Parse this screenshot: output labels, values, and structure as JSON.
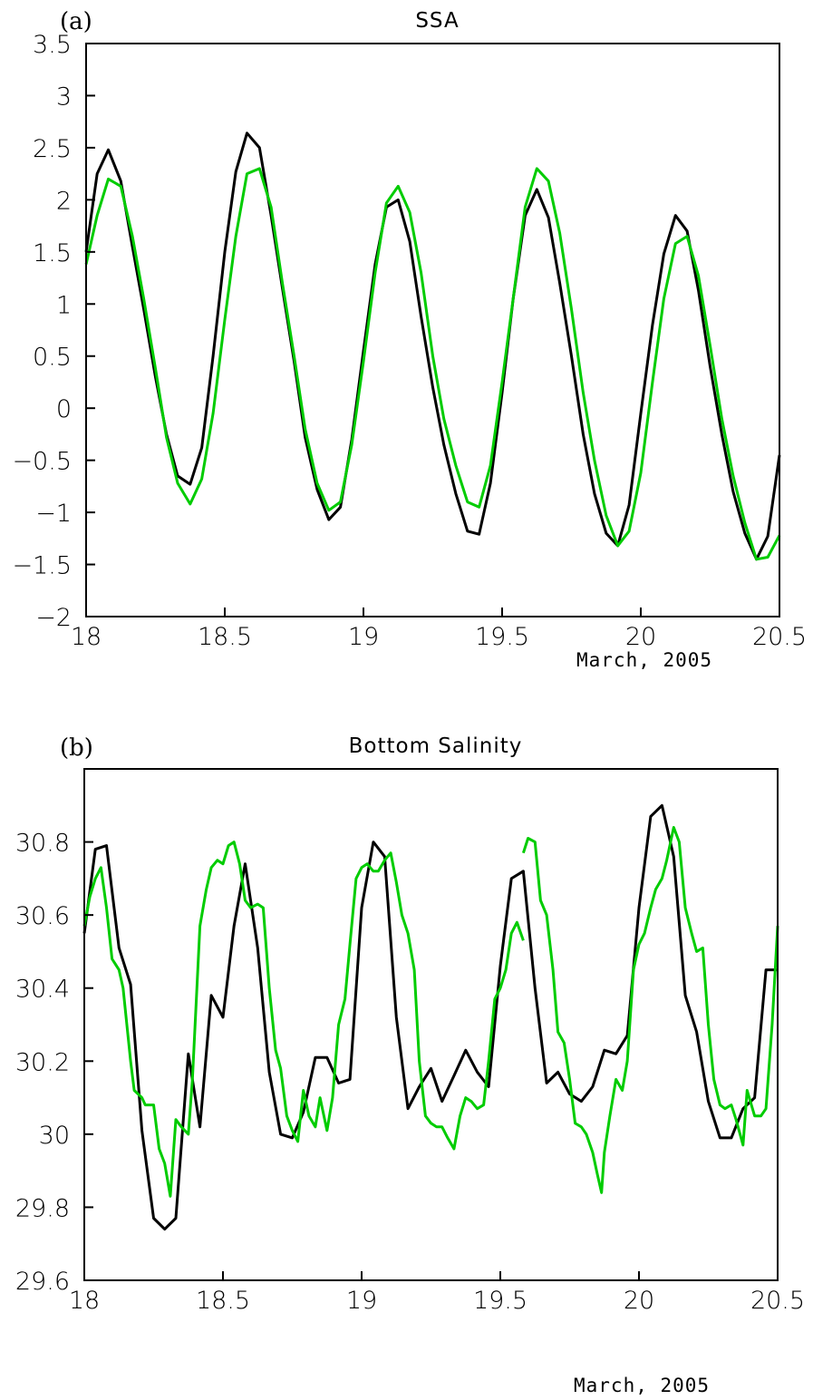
{
  "chart_data": [
    {
      "type": "line",
      "panel_label": "(a)",
      "title": "SSA",
      "xlabel": "March, 2005",
      "ylabel": "",
      "xlim": [
        18,
        20.5
      ],
      "ylim": [
        -2,
        3.5
      ],
      "xticks": [
        18,
        18.5,
        19,
        19.5,
        20,
        20.5
      ],
      "xtick_labels": [
        "18",
        "18.5",
        "19",
        "19.5",
        "20",
        "20.5"
      ],
      "yticks": [
        -2,
        -1.5,
        -1,
        -0.5,
        0,
        0.5,
        1,
        1.5,
        2,
        2.5,
        3,
        3.5
      ],
      "ytick_labels": [
        "−2",
        "−1.5",
        "−1",
        "−0.5",
        "0",
        "0.5",
        "1",
        "1.5",
        "2",
        "2.5",
        "3",
        "3.5"
      ],
      "grid": false,
      "colors": {
        "black": "#000000",
        "green": "#00cc00"
      },
      "series": [
        {
          "color": "#000000",
          "x": [
            18.0,
            18.04,
            18.08,
            18.125,
            18.167,
            18.208,
            18.25,
            18.29,
            18.33,
            18.375,
            18.417,
            18.458,
            18.5,
            18.54,
            18.58,
            18.625,
            18.667,
            18.708,
            18.75,
            18.79,
            18.833,
            18.875,
            18.917,
            18.958,
            19.0,
            19.042,
            19.083,
            19.125,
            19.167,
            19.208,
            19.25,
            19.29,
            19.333,
            19.375,
            19.417,
            19.458,
            19.5,
            19.54,
            19.583,
            19.625,
            19.667,
            19.708,
            19.75,
            19.792,
            19.833,
            19.875,
            19.917,
            19.958,
            20.0,
            20.042,
            20.083,
            20.125,
            20.167,
            20.208,
            20.25,
            20.292,
            20.333,
            20.375,
            20.417,
            20.458,
            20.5
          ],
          "values": [
            1.5,
            2.25,
            2.48,
            2.18,
            1.55,
            0.95,
            0.3,
            -0.25,
            -0.65,
            -0.73,
            -0.38,
            0.5,
            1.5,
            2.27,
            2.64,
            2.5,
            1.85,
            1.15,
            0.45,
            -0.28,
            -0.78,
            -1.07,
            -0.95,
            -0.3,
            0.55,
            1.38,
            1.93,
            2.0,
            1.6,
            0.88,
            0.2,
            -0.35,
            -0.82,
            -1.18,
            -1.21,
            -0.72,
            0.15,
            1.05,
            1.85,
            2.1,
            1.83,
            1.2,
            0.5,
            -0.25,
            -0.82,
            -1.2,
            -1.32,
            -0.93,
            -0.05,
            0.8,
            1.48,
            1.85,
            1.7,
            1.13,
            0.4,
            -0.25,
            -0.8,
            -1.2,
            -1.45,
            -1.23,
            -0.45
          ]
        },
        {
          "color": "#00cc00",
          "x": [
            18.0,
            18.04,
            18.08,
            18.125,
            18.167,
            18.208,
            18.25,
            18.29,
            18.33,
            18.375,
            18.417,
            18.458,
            18.5,
            18.54,
            18.58,
            18.625,
            18.667,
            18.708,
            18.75,
            18.79,
            18.833,
            18.875,
            18.917,
            18.958,
            19.0,
            19.042,
            19.083,
            19.125,
            19.167,
            19.208,
            19.25,
            19.29,
            19.333,
            19.375,
            19.417,
            19.458,
            19.5,
            19.54,
            19.583,
            19.625,
            19.667,
            19.708,
            19.75,
            19.792,
            19.833,
            19.875,
            19.917,
            19.958,
            20.0,
            20.042,
            20.083,
            20.125,
            20.167,
            20.208,
            20.25,
            20.292,
            20.333,
            20.375,
            20.417,
            20.458,
            20.5
          ],
          "values": [
            1.38,
            1.85,
            2.2,
            2.13,
            1.65,
            1.05,
            0.38,
            -0.28,
            -0.72,
            -0.92,
            -0.68,
            -0.05,
            0.85,
            1.65,
            2.25,
            2.3,
            1.93,
            1.2,
            0.5,
            -0.2,
            -0.72,
            -0.98,
            -0.9,
            -0.35,
            0.45,
            1.3,
            1.97,
            2.13,
            1.88,
            1.3,
            0.5,
            -0.1,
            -0.55,
            -0.9,
            -0.95,
            -0.55,
            0.25,
            1.05,
            1.93,
            2.3,
            2.18,
            1.68,
            0.95,
            0.15,
            -0.5,
            -1.03,
            -1.32,
            -1.18,
            -0.62,
            0.25,
            1.05,
            1.58,
            1.65,
            1.27,
            0.6,
            -0.1,
            -0.65,
            -1.1,
            -1.45,
            -1.43,
            -1.22
          ]
        }
      ]
    },
    {
      "type": "line",
      "panel_label": "(b)",
      "title": "Bottom Salinity",
      "xlabel": "March, 2005",
      "ylabel": "",
      "xlim": [
        18,
        20.5
      ],
      "ylim": [
        29.6,
        31.0
      ],
      "xticks": [
        18,
        18.5,
        19,
        19.5,
        20,
        20.5
      ],
      "xtick_labels": [
        "18",
        "18.5",
        "19",
        "19.5",
        "20",
        "20.5"
      ],
      "yticks": [
        29.6,
        29.8,
        30,
        30.2,
        30.4,
        30.6,
        30.8
      ],
      "ytick_labels": [
        "29.6",
        "29.8",
        "30",
        "30.2",
        "30.4",
        "30.6",
        "30.8"
      ],
      "grid": false,
      "colors": {
        "black": "#000000",
        "green": "#00cc00"
      },
      "series": [
        {
          "color": "#000000",
          "x": [
            18.0,
            18.04,
            18.08,
            18.125,
            18.167,
            18.208,
            18.25,
            18.29,
            18.33,
            18.375,
            18.417,
            18.458,
            18.5,
            18.54,
            18.58,
            18.625,
            18.667,
            18.708,
            18.75,
            18.79,
            18.833,
            18.875,
            18.917,
            18.958,
            19.0,
            19.042,
            19.083,
            19.125,
            19.167,
            19.208,
            19.25,
            19.29,
            19.333,
            19.375,
            19.417,
            19.458,
            19.5,
            19.54,
            19.583,
            19.625,
            19.667,
            19.708,
            19.75,
            19.792,
            19.833,
            19.875,
            19.917,
            19.958,
            20.0,
            20.042,
            20.083,
            20.125,
            20.167,
            20.208,
            20.25,
            20.292,
            20.333,
            20.375,
            20.417,
            20.458,
            20.5
          ],
          "values": [
            30.55,
            30.78,
            30.79,
            30.51,
            30.41,
            30.01,
            29.77,
            29.74,
            29.77,
            30.22,
            30.02,
            30.38,
            30.32,
            30.57,
            30.74,
            30.51,
            30.17,
            30.0,
            29.99,
            30.06,
            30.21,
            30.21,
            30.14,
            30.15,
            30.62,
            30.8,
            30.76,
            30.32,
            30.07,
            30.13,
            30.18,
            30.09,
            30.16,
            30.23,
            30.17,
            30.13,
            30.46,
            30.7,
            30.72,
            30.4,
            30.14,
            30.17,
            30.11,
            30.09,
            30.13,
            30.23,
            30.22,
            30.27,
            30.62,
            30.87,
            30.9,
            30.76,
            30.38,
            30.28,
            30.09,
            29.99,
            29.99,
            30.07,
            30.1,
            30.45,
            30.45
          ]
        },
        {
          "color": "#00cc00",
          "x": [
            18.0,
            18.02,
            18.04,
            18.06,
            18.08,
            18.1,
            18.125,
            18.14,
            18.167,
            18.18,
            18.208,
            18.22,
            18.25,
            18.27,
            18.29,
            18.31,
            18.33,
            18.35,
            18.375,
            18.39,
            18.417,
            18.44,
            18.458,
            18.48,
            18.5,
            18.52,
            18.54,
            18.56,
            18.58,
            18.6,
            18.625,
            18.645,
            18.667,
            18.69,
            18.708,
            18.73,
            18.75,
            18.77,
            18.79,
            18.81,
            18.833,
            18.85,
            18.875,
            18.895,
            18.917,
            18.94,
            18.958,
            18.98,
            19.0,
            19.02,
            19.042,
            19.06,
            19.083,
            19.105,
            19.125,
            19.145,
            19.167,
            19.19,
            19.208,
            19.23,
            19.25,
            19.27,
            19.29,
            19.31,
            19.333,
            19.355,
            19.375,
            19.395,
            19.417,
            19.44,
            19.458,
            19.48,
            19.5,
            19.52,
            19.54,
            19.56,
            19.583
          ],
          "values": [
            30.57,
            30.65,
            30.7,
            30.73,
            30.62,
            30.48,
            30.45,
            30.4,
            30.2,
            30.12,
            30.1,
            30.08,
            30.08,
            29.96,
            29.92,
            29.83,
            30.04,
            30.02,
            30.0,
            30.15,
            30.57,
            30.67,
            30.73,
            30.75,
            30.74,
            30.79,
            30.8,
            30.74,
            30.64,
            30.62,
            30.63,
            30.62,
            30.4,
            30.23,
            30.18,
            30.05,
            30.01,
            29.98,
            30.12,
            30.05,
            30.02,
            30.1,
            30.01,
            30.1,
            30.3,
            30.37,
            30.52,
            30.7,
            30.73,
            30.74,
            30.72,
            30.72,
            30.75,
            30.77,
            30.69,
            30.6,
            30.55,
            30.45,
            30.2,
            30.05,
            30.03,
            30.02,
            30.02,
            29.99,
            29.96,
            30.05,
            30.1,
            30.09,
            30.07,
            30.08,
            30.2,
            30.37,
            30.4,
            30.45,
            30.55,
            30.58,
            30.53
          ]
        },
        {
          "color": "#00cc00",
          "x": [
            19.583,
            19.6,
            19.625,
            19.645,
            19.667,
            19.69,
            19.708,
            19.73,
            19.75,
            19.77,
            19.792,
            19.81,
            19.833,
            19.85,
            19.865,
            19.875,
            19.895,
            19.917,
            19.94,
            19.958,
            19.98,
            20.0,
            20.02,
            20.042,
            20.06,
            20.083,
            20.1,
            20.125,
            20.145,
            20.167,
            20.19,
            20.208,
            20.23,
            20.25,
            20.27,
            20.292,
            20.31,
            20.333,
            20.35,
            20.375,
            20.39,
            20.417,
            20.44,
            20.458,
            20.48,
            20.5
          ],
          "values": [
            30.77,
            30.81,
            30.8,
            30.64,
            30.6,
            30.45,
            30.28,
            30.25,
            30.15,
            30.03,
            30.02,
            30.0,
            29.95,
            29.89,
            29.84,
            29.95,
            30.05,
            30.15,
            30.12,
            30.2,
            30.45,
            30.52,
            30.55,
            30.62,
            30.67,
            30.7,
            30.75,
            30.84,
            30.8,
            30.62,
            30.55,
            30.5,
            30.51,
            30.3,
            30.15,
            30.08,
            30.07,
            30.08,
            30.04,
            29.97,
            30.12,
            30.05,
            30.05,
            30.07,
            30.3,
            30.57
          ]
        }
      ]
    }
  ]
}
